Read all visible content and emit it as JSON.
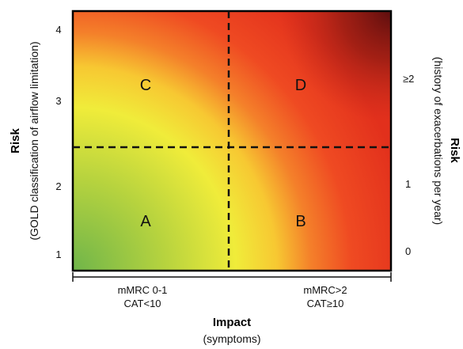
{
  "diagram": {
    "quadrants": [
      {
        "id": "A",
        "label": "A"
      },
      {
        "id": "B",
        "label": "B"
      },
      {
        "id": "C",
        "label": "C"
      },
      {
        "id": "D",
        "label": "D"
      }
    ],
    "left_axis": {
      "title": "Risk",
      "subtitle": "(GOLD classification of airflow limitation)",
      "ticks": [
        "1",
        "2",
        "3",
        "4"
      ]
    },
    "right_axis": {
      "title": "Risk",
      "subtitle": "(history of exacerbations per year)",
      "ticks": [
        "0",
        "1",
        "≥2"
      ]
    },
    "bottom_axis": {
      "title": "Impact",
      "subtitle": "(symptoms)",
      "categories": [
        {
          "line1": "mMRC 0-1",
          "line2": "CAT<10"
        },
        {
          "line1": "mMRC>2",
          "line2": "CAT≥10"
        }
      ]
    },
    "colors": {
      "low_risk": "#7cba4a",
      "mid": "#f2ee3a",
      "high": "#f03a1e",
      "very_high": "#6b0f0f",
      "border": "#000000"
    }
  }
}
